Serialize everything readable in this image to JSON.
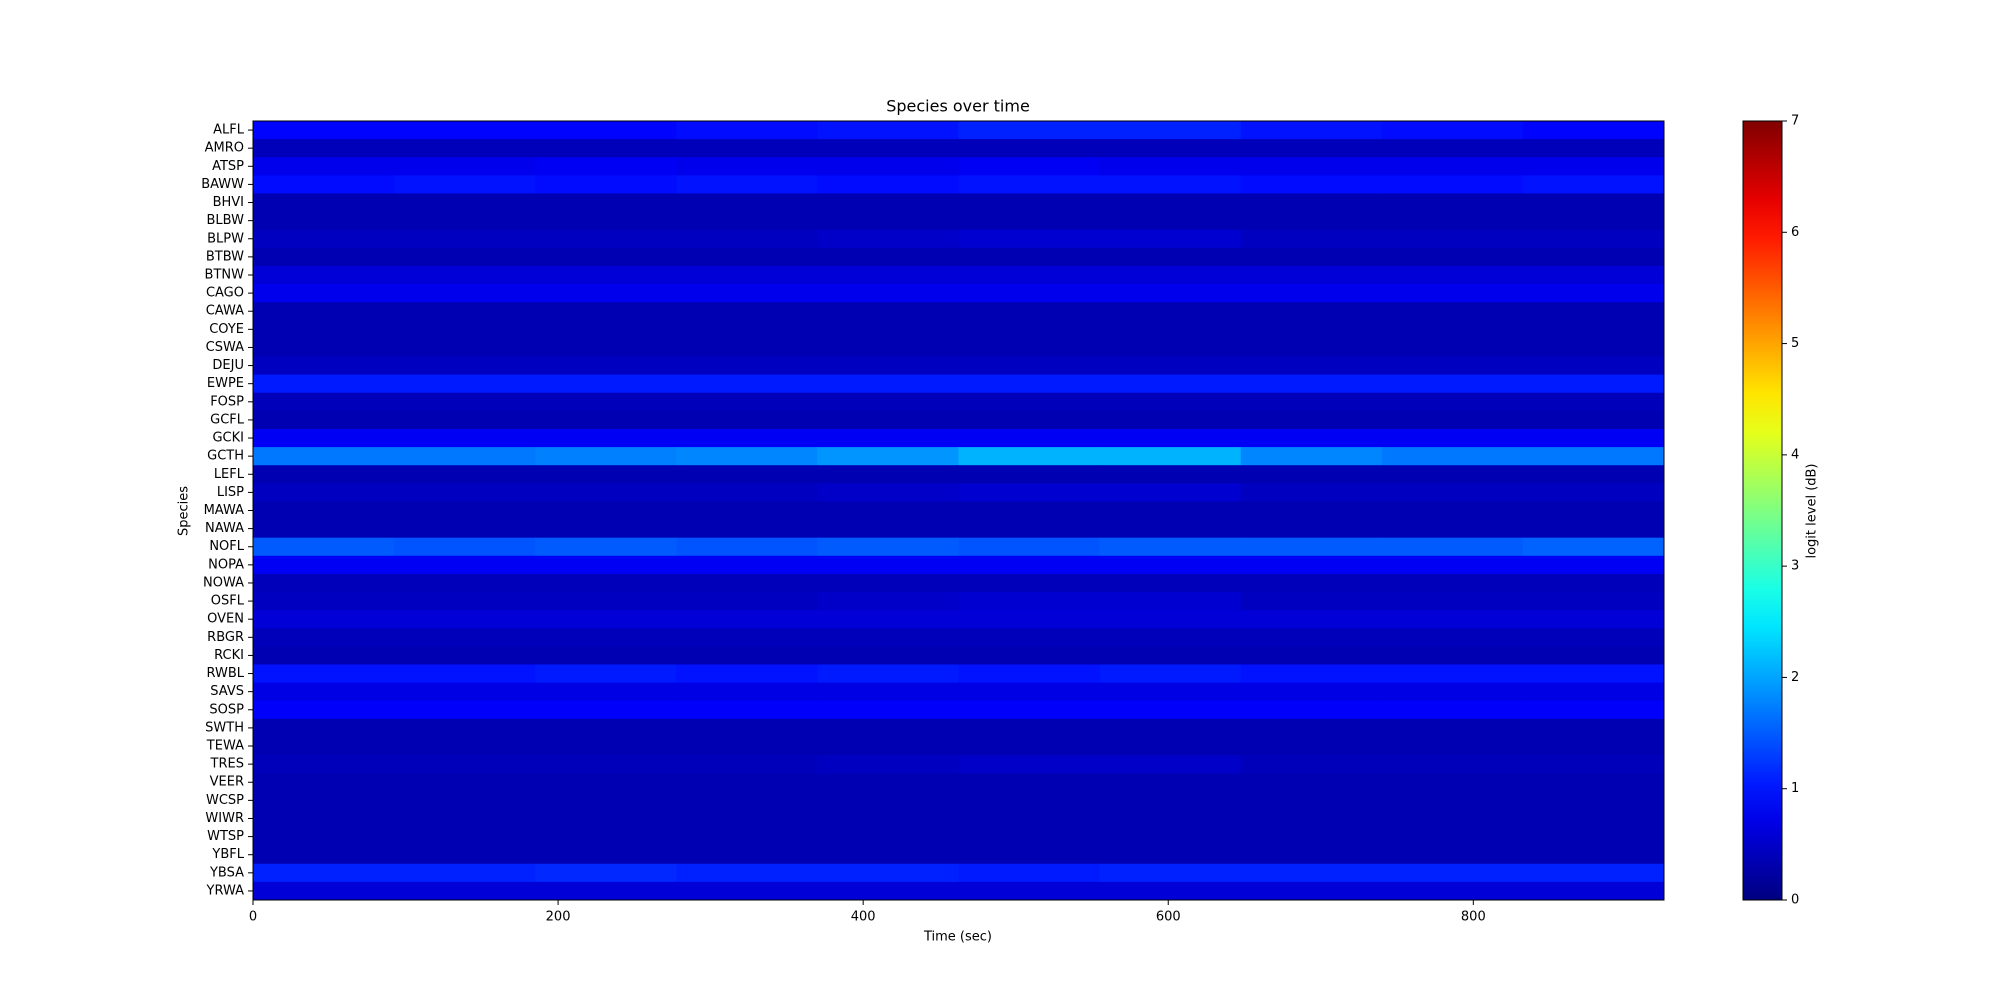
{
  "chart_data": {
    "type": "heatmap",
    "title": "Species over time",
    "xlabel": "Time (sec)",
    "ylabel": "Species",
    "colorbar_label": "logit level (dB)",
    "colormap": "jet",
    "clim": [
      0,
      7
    ],
    "cticks": [
      0,
      1,
      2,
      3,
      4,
      5,
      6,
      7
    ],
    "xlim": [
      0,
      925
    ],
    "xticks": [
      0,
      200,
      400,
      600,
      800
    ],
    "bins": [
      0,
      92.5,
      185,
      277.5,
      370,
      462.5,
      555,
      647.5,
      740,
      832.5,
      925
    ],
    "categories": [
      "ALFL",
      "AMRO",
      "ATSP",
      "BAWW",
      "BHVI",
      "BLBW",
      "BLPW",
      "BTBW",
      "BTNW",
      "CAGO",
      "CAWA",
      "COYE",
      "CSWA",
      "DEJU",
      "EWPE",
      "FOSP",
      "GCFL",
      "GCKI",
      "GCTH",
      "LEFL",
      "LISP",
      "MAWA",
      "NAWA",
      "NOFL",
      "NOPA",
      "NOWA",
      "OSFL",
      "OVEN",
      "RBGR",
      "RCKI",
      "RWBL",
      "SAVS",
      "SOSP",
      "SWTH",
      "TEWA",
      "TRES",
      "VEER",
      "WCSP",
      "WIWR",
      "WTSP",
      "YBFL",
      "YBSA",
      "YRWA"
    ],
    "values": [
      [
        0.9,
        0.9,
        0.9,
        0.95,
        1.0,
        1.1,
        1.1,
        1.0,
        0.95,
        0.9
      ],
      [
        0.4,
        0.4,
        0.4,
        0.4,
        0.4,
        0.4,
        0.4,
        0.4,
        0.4,
        0.4
      ],
      [
        0.75,
        0.75,
        0.8,
        0.75,
        0.75,
        0.8,
        0.75,
        0.75,
        0.75,
        0.75
      ],
      [
        0.95,
        1.0,
        0.95,
        1.0,
        0.95,
        1.0,
        1.0,
        0.95,
        0.95,
        1.0
      ],
      [
        0.35,
        0.35,
        0.35,
        0.35,
        0.35,
        0.35,
        0.35,
        0.35,
        0.35,
        0.35
      ],
      [
        0.35,
        0.35,
        0.35,
        0.35,
        0.35,
        0.35,
        0.35,
        0.35,
        0.35,
        0.35
      ],
      [
        0.45,
        0.45,
        0.45,
        0.45,
        0.5,
        0.55,
        0.55,
        0.45,
        0.45,
        0.45
      ],
      [
        0.35,
        0.35,
        0.35,
        0.35,
        0.35,
        0.35,
        0.35,
        0.35,
        0.35,
        0.35
      ],
      [
        0.6,
        0.6,
        0.6,
        0.6,
        0.6,
        0.6,
        0.6,
        0.6,
        0.6,
        0.6
      ],
      [
        0.75,
        0.75,
        0.75,
        0.75,
        0.75,
        0.75,
        0.75,
        0.75,
        0.75,
        0.75
      ],
      [
        0.35,
        0.35,
        0.35,
        0.35,
        0.35,
        0.35,
        0.35,
        0.35,
        0.35,
        0.35
      ],
      [
        0.35,
        0.35,
        0.35,
        0.35,
        0.35,
        0.35,
        0.35,
        0.35,
        0.35,
        0.35
      ],
      [
        0.35,
        0.35,
        0.35,
        0.35,
        0.35,
        0.35,
        0.35,
        0.35,
        0.35,
        0.35
      ],
      [
        0.45,
        0.45,
        0.45,
        0.45,
        0.45,
        0.45,
        0.45,
        0.45,
        0.45,
        0.45
      ],
      [
        1.05,
        1.05,
        1.05,
        1.05,
        1.05,
        1.05,
        1.05,
        1.05,
        1.05,
        1.05
      ],
      [
        0.4,
        0.4,
        0.4,
        0.4,
        0.4,
        0.4,
        0.4,
        0.4,
        0.4,
        0.4
      ],
      [
        0.35,
        0.35,
        0.35,
        0.35,
        0.35,
        0.35,
        0.35,
        0.35,
        0.35,
        0.35
      ],
      [
        0.8,
        0.8,
        0.8,
        0.8,
        0.8,
        0.8,
        0.8,
        0.8,
        0.8,
        0.8
      ],
      [
        1.7,
        1.7,
        1.75,
        1.8,
        1.9,
        2.1,
        2.1,
        1.8,
        1.7,
        1.7
      ],
      [
        0.35,
        0.35,
        0.35,
        0.35,
        0.35,
        0.35,
        0.35,
        0.35,
        0.35,
        0.35
      ],
      [
        0.45,
        0.45,
        0.45,
        0.45,
        0.5,
        0.55,
        0.55,
        0.45,
        0.45,
        0.45
      ],
      [
        0.35,
        0.35,
        0.35,
        0.35,
        0.35,
        0.35,
        0.35,
        0.35,
        0.35,
        0.35
      ],
      [
        0.35,
        0.35,
        0.35,
        0.35,
        0.35,
        0.35,
        0.35,
        0.35,
        0.35,
        0.35
      ],
      [
        1.5,
        1.45,
        1.5,
        1.45,
        1.5,
        1.45,
        1.5,
        1.5,
        1.5,
        1.55
      ],
      [
        0.8,
        0.8,
        0.8,
        0.8,
        0.8,
        0.8,
        0.8,
        0.8,
        0.8,
        0.8
      ],
      [
        0.4,
        0.4,
        0.4,
        0.4,
        0.4,
        0.4,
        0.4,
        0.4,
        0.4,
        0.4
      ],
      [
        0.45,
        0.45,
        0.45,
        0.45,
        0.5,
        0.55,
        0.55,
        0.45,
        0.45,
        0.45
      ],
      [
        0.6,
        0.6,
        0.6,
        0.6,
        0.6,
        0.6,
        0.6,
        0.6,
        0.6,
        0.6
      ],
      [
        0.4,
        0.4,
        0.4,
        0.4,
        0.4,
        0.4,
        0.4,
        0.4,
        0.4,
        0.4
      ],
      [
        0.35,
        0.35,
        0.35,
        0.35,
        0.35,
        0.35,
        0.35,
        0.35,
        0.35,
        0.35
      ],
      [
        1.0,
        1.0,
        1.05,
        1.0,
        1.05,
        1.0,
        1.05,
        1.0,
        1.0,
        1.0
      ],
      [
        0.7,
        0.7,
        0.7,
        0.7,
        0.7,
        0.7,
        0.7,
        0.7,
        0.7,
        0.7
      ],
      [
        0.85,
        0.85,
        0.85,
        0.85,
        0.85,
        0.85,
        0.85,
        0.85,
        0.85,
        0.85
      ],
      [
        0.35,
        0.35,
        0.35,
        0.35,
        0.35,
        0.35,
        0.35,
        0.35,
        0.35,
        0.35
      ],
      [
        0.35,
        0.35,
        0.35,
        0.35,
        0.35,
        0.35,
        0.35,
        0.35,
        0.35,
        0.35
      ],
      [
        0.4,
        0.4,
        0.4,
        0.4,
        0.45,
        0.5,
        0.5,
        0.4,
        0.4,
        0.4
      ],
      [
        0.35,
        0.35,
        0.35,
        0.35,
        0.35,
        0.35,
        0.35,
        0.35,
        0.35,
        0.35
      ],
      [
        0.35,
        0.35,
        0.35,
        0.35,
        0.35,
        0.35,
        0.35,
        0.35,
        0.35,
        0.35
      ],
      [
        0.35,
        0.35,
        0.35,
        0.35,
        0.35,
        0.35,
        0.35,
        0.35,
        0.35,
        0.35
      ],
      [
        0.35,
        0.35,
        0.35,
        0.35,
        0.35,
        0.35,
        0.35,
        0.35,
        0.35,
        0.35
      ],
      [
        0.35,
        0.35,
        0.35,
        0.35,
        0.35,
        0.35,
        0.35,
        0.35,
        0.35,
        0.35
      ],
      [
        1.1,
        1.1,
        1.15,
        1.1,
        1.1,
        1.05,
        1.1,
        1.1,
        1.1,
        1.1
      ],
      [
        0.6,
        0.6,
        0.6,
        0.6,
        0.6,
        0.6,
        0.6,
        0.6,
        0.6,
        0.6
      ]
    ]
  }
}
